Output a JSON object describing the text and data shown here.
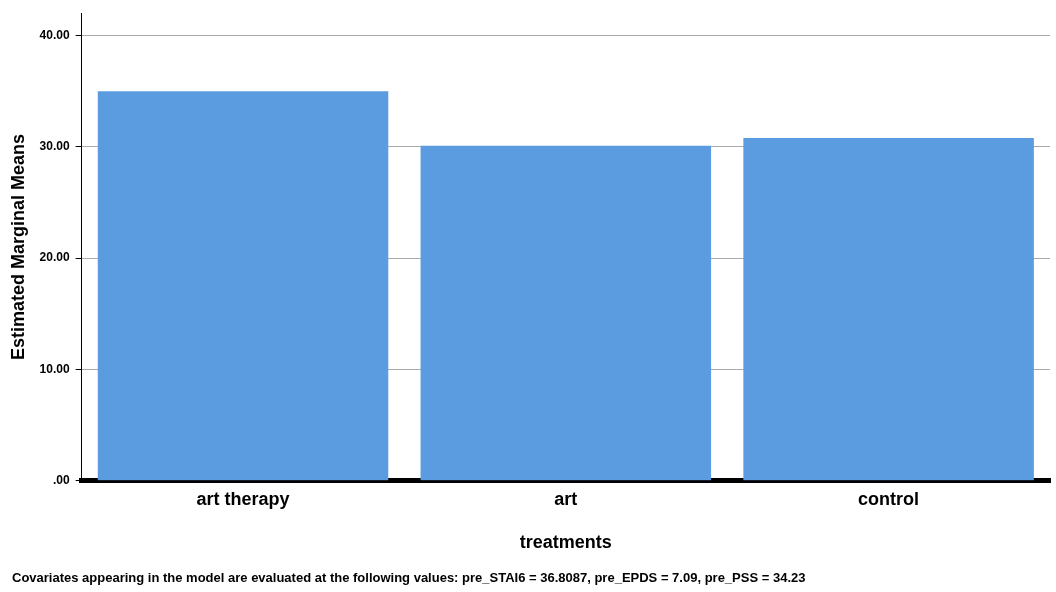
{
  "chart_data": {
    "type": "bar",
    "xlabel": "treatments",
    "ylabel": "Estimated Marginal Means",
    "categories": [
      "art therapy",
      "art",
      "control"
    ],
    "values": [
      35.0,
      30.1,
      30.8
    ],
    "color": "#5b9be0",
    "ylim": [
      0,
      42
    ],
    "yticks": [
      {
        "value": 0,
        "label": ".00"
      },
      {
        "value": 10,
        "label": "10.00"
      },
      {
        "value": 20,
        "label": "20.00"
      },
      {
        "value": 30,
        "label": "30.00"
      },
      {
        "value": 40,
        "label": "40.00"
      }
    ],
    "grid": "y",
    "annotations": [
      "Covariates appearing in the model are evaluated at the following values: pre_STAI6 = 36.8087, pre_EPDS = 7.09, pre_PSS = 34.23"
    ]
  }
}
